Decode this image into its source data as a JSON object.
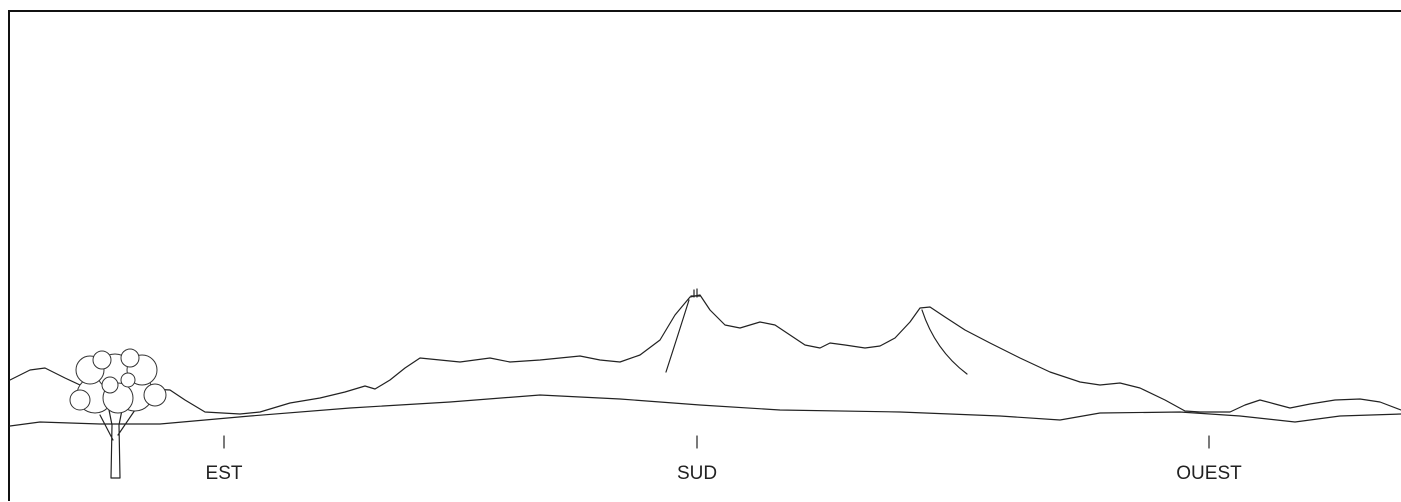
{
  "directions": [
    "EST",
    "SUD",
    "OUEST"
  ]
}
